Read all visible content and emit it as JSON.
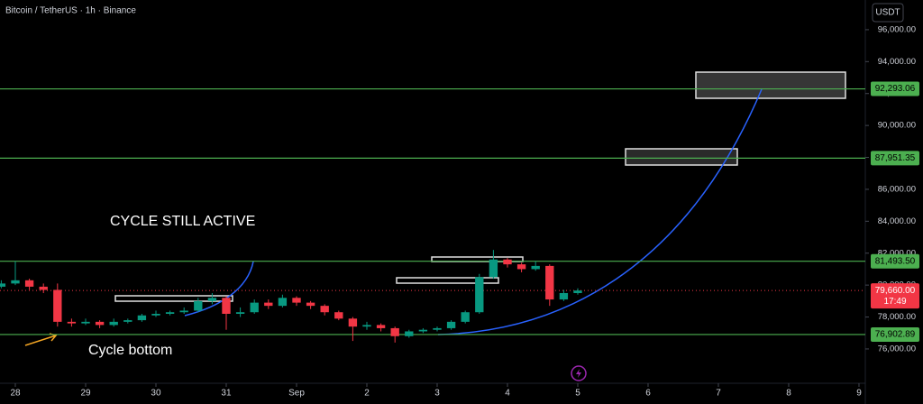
{
  "chart_data": {
    "type": "candlestick",
    "title": "Bitcoin / TetherUS · 1h · Binance",
    "unit": "USDT",
    "up_color": "#089981",
    "down_color": "#f23645",
    "level_color": "#4caf50",
    "x": [
      -0.2,
      0,
      0.2,
      0.4,
      0.6,
      0.8,
      1.0,
      1.2,
      1.4,
      1.6,
      1.8,
      2.0,
      2.2,
      2.4,
      2.6,
      2.8,
      3.0,
      3.2,
      3.4,
      3.6,
      3.8,
      4.0,
      4.2,
      4.4,
      4.6,
      4.8,
      5.0,
      5.2,
      5.4,
      5.6,
      5.8,
      6.0,
      6.2,
      6.4,
      6.6,
      6.8,
      7.0,
      7.2,
      7.4,
      7.6,
      7.8,
      8.0
    ],
    "open": [
      79900,
      80100,
      80300,
      79900,
      79700,
      77700,
      77600,
      77700,
      77500,
      77700,
      77800,
      78100,
      78200,
      78300,
      78400,
      79000,
      79200,
      78200,
      78300,
      78900,
      78700,
      79200,
      78900,
      78700,
      78300,
      77900,
      77400,
      77500,
      77300,
      76800,
      77100,
      77200,
      77300,
      77700,
      78300,
      80500,
      81600,
      81300,
      81000,
      81200,
      79100,
      79500
    ],
    "high": [
      80300,
      81500,
      80400,
      80100,
      80100,
      77900,
      77900,
      77800,
      77900,
      77900,
      78200,
      78400,
      78400,
      78600,
      79200,
      79500,
      79300,
      78600,
      79100,
      79100,
      79400,
      79300,
      79000,
      78800,
      78400,
      78000,
      77700,
      77600,
      77400,
      77200,
      77300,
      77400,
      77800,
      78400,
      80700,
      82200,
      81700,
      81400,
      81500,
      81300,
      79700,
      79800
    ],
    "low": [
      79800,
      80000,
      79700,
      79500,
      77400,
      77400,
      77500,
      77300,
      77400,
      77600,
      77700,
      78000,
      78100,
      78200,
      78300,
      78800,
      77200,
      78000,
      78200,
      78500,
      78600,
      78700,
      78500,
      78100,
      77800,
      76500,
      77200,
      77100,
      76400,
      76700,
      77000,
      77100,
      77200,
      77600,
      78200,
      80400,
      81100,
      80800,
      80900,
      78700,
      79000,
      79400
    ],
    "close": [
      80100,
      80300,
      79900,
      79700,
      77700,
      77600,
      77700,
      77500,
      77700,
      77800,
      78100,
      78200,
      78300,
      78400,
      79000,
      79200,
      78200,
      78300,
      78900,
      78700,
      79200,
      78900,
      78700,
      78300,
      77900,
      77400,
      77500,
      77300,
      76800,
      77100,
      77200,
      77300,
      77700,
      78300,
      80500,
      81600,
      81300,
      81000,
      81200,
      79100,
      79500,
      79660
    ],
    "xlim": [
      -0.218,
      12.09
    ],
    "xticks": [
      {
        "value": 0,
        "label": "28"
      },
      {
        "value": 1,
        "label": "29"
      },
      {
        "value": 2,
        "label": "30"
      },
      {
        "value": 3,
        "label": "31"
      },
      {
        "value": 4,
        "label": "Sep"
      },
      {
        "value": 5,
        "label": "2"
      },
      {
        "value": 6,
        "label": "3"
      },
      {
        "value": 7,
        "label": "4"
      },
      {
        "value": 8,
        "label": "5"
      },
      {
        "value": 9,
        "label": "6"
      },
      {
        "value": 10,
        "label": "7"
      },
      {
        "value": 11,
        "label": "8"
      },
      {
        "value": 12,
        "label": "9"
      }
    ],
    "ylim": [
      73850,
      97860
    ],
    "yticks": [
      {
        "value": 76000,
        "label": "76,000.00"
      },
      {
        "value": 78000,
        "label": "78,000.00"
      },
      {
        "value": 80000,
        "label": "80,000.00"
      },
      {
        "value": 82000,
        "label": "82,000.00"
      },
      {
        "value": 84000,
        "label": "84,000.00"
      },
      {
        "value": 86000,
        "label": "86,000.00"
      },
      {
        "value": 88000,
        "label": "88,000.00"
      },
      {
        "value": 90000,
        "label": "90,000.00"
      },
      {
        "value": 92000,
        "label": "92,000.00"
      },
      {
        "value": 94000,
        "label": "94,000.00"
      },
      {
        "value": 96000,
        "label": "96,000.00"
      }
    ],
    "levels": [
      {
        "value": 92293.06,
        "label": "92,293.06"
      },
      {
        "value": 87951.35,
        "label": "87,951.35"
      },
      {
        "value": 81493.5,
        "label": "81,493.50"
      },
      {
        "value": 76902.89,
        "label": "76,902.89"
      }
    ],
    "last_price": {
      "value": 79660,
      "label": "79,660.00",
      "countdown": "17:49"
    },
    "annotations": [
      "CYCLE STILL ACTIVE",
      "Cycle bottom"
    ]
  }
}
